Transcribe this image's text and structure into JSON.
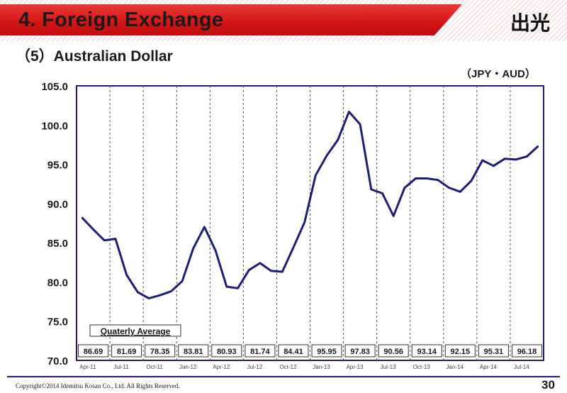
{
  "header": {
    "title": "4. Foreign Exchange",
    "logo_text": "出光",
    "brand_color": "#d21414"
  },
  "subtitle": "（5）Australian Dollar",
  "unit_label": "（JPY・AUD）",
  "footer": {
    "copyright": "Copyright©2014   Idemitsu Kosan Co., Ltd. All Rights Reserved.",
    "page_number": "30"
  },
  "chart_data": {
    "type": "line",
    "title": "",
    "xlabel": "",
    "ylabel": "",
    "ylim": [
      70,
      105
    ],
    "y_ticks": [
      "105.0",
      "100.0",
      "95.0",
      "90.0",
      "85.0",
      "80.0",
      "75.0",
      "70.0"
    ],
    "x_tick_labels": [
      "Apr-11",
      "Jul-11",
      "Oct-11",
      "Jan-12",
      "Apr-12",
      "Jul-12",
      "Oct-12",
      "Jan-13",
      "Apr-13",
      "Jul-13",
      "Oct-13",
      "Jan-14",
      "Apr-14",
      "Jul-14"
    ],
    "grid": "vertical dashed lines at each quarter",
    "line_color": "#1e1e78",
    "series": [
      {
        "values": [
          88.2,
          86.7,
          85.3,
          85.5,
          80.9,
          78.7,
          77.9,
          78.3,
          78.8,
          80.1,
          84.3,
          87.0,
          84.0,
          79.4,
          79.2,
          81.5,
          82.4,
          81.4,
          81.3,
          84.4,
          87.6,
          93.6,
          96.1,
          98.1,
          101.7,
          100.1,
          91.8,
          91.3,
          88.4,
          92.0,
          93.2,
          93.2,
          93.0,
          92.0,
          91.5,
          92.9,
          95.5,
          94.8,
          95.7,
          95.6,
          96.0,
          97.3
        ]
      }
    ],
    "quarterly_average_label": "Quaterly Average",
    "quarterly_averages": [
      "86.69",
      "81.69",
      "78.35",
      "83.81",
      "80.93",
      "81.74",
      "84.41",
      "95.95",
      "97.83",
      "90.56",
      "93.14",
      "92.15",
      "95.31",
      "96.18"
    ]
  }
}
